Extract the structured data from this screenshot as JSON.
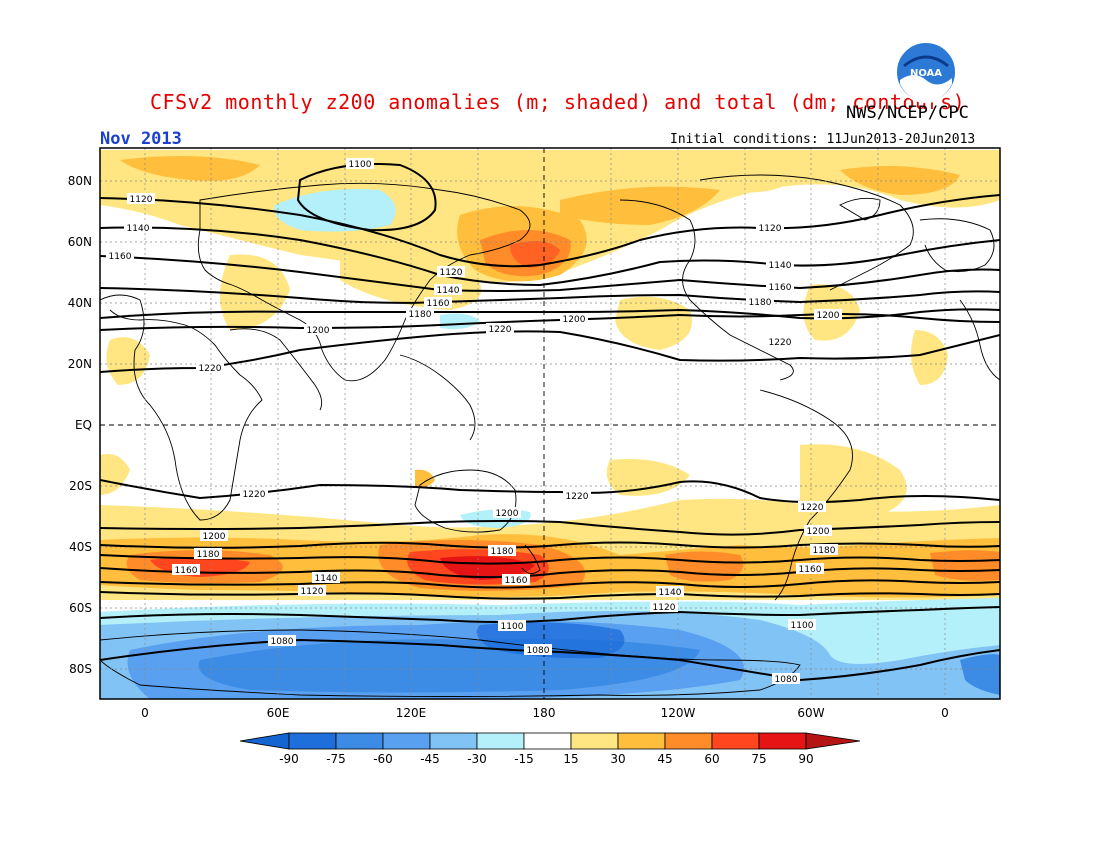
{
  "header": {
    "title": "CFSv2 monthly z200 anomalies (m; shaded) and total (dm; contours)",
    "agency": "NWS/NCEP/CPC",
    "logo_text": "NOAA",
    "month": "Nov 2013",
    "initial_conditions": "Initial conditions: 11Jun2013-20Jun2013"
  },
  "map": {
    "lat_labels": [
      "80N",
      "60N",
      "40N",
      "20N",
      "EQ",
      "20S",
      "40S",
      "60S",
      "80S"
    ],
    "lon_labels": [
      "0",
      "60E",
      "120E",
      "180",
      "120W",
      "60W",
      "0"
    ],
    "contour_labels": [
      "1100",
      "1120",
      "1140",
      "1160",
      "1180",
      "1200",
      "1220",
      "1080"
    ]
  },
  "colorbar": {
    "ticks": [
      "-90",
      "-75",
      "-60",
      "-45",
      "-30",
      "-15",
      "15",
      "30",
      "45",
      "60",
      "75",
      "90"
    ],
    "colors": [
      "#1464d2",
      "#1e6edc",
      "#3c8ce6",
      "#5aa0f0",
      "#82c3f5",
      "#b4f0fa",
      "#ffffff",
      "#ffe682",
      "#ffbe3c",
      "#ff8c28",
      "#ff461e",
      "#e61414",
      "#b41414"
    ]
  }
}
